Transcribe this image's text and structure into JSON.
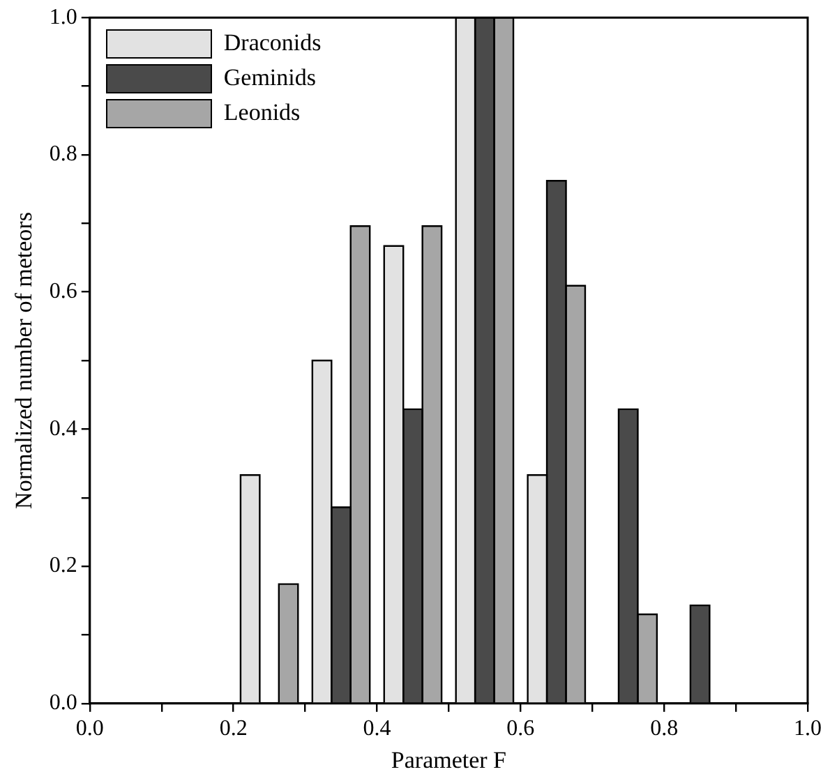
{
  "chart_data": {
    "type": "histogram",
    "xlabel": "Parameter F",
    "ylabel": "Normalized number of meteors",
    "bins": [
      0,
      0.1,
      0.2,
      0.3,
      0.4,
      0.5,
      0.6,
      0.7,
      0.8,
      0.9,
      1.0
    ],
    "series": [
      {
        "name": "Draconids",
        "color": "#e2e2e2",
        "values": [
          0,
          0,
          0.333,
          0.5,
          0.667,
          1,
          0.333,
          0,
          0,
          0
        ]
      },
      {
        "name": "Geminids",
        "color": "#4a4a4a",
        "values": [
          0,
          0,
          0,
          0.286,
          0.429,
          1,
          0.762,
          0.429,
          0.143,
          0
        ]
      },
      {
        "name": "Leonids",
        "color": "#a6a6a6",
        "values": [
          0,
          0,
          0.174,
          0.696,
          0.696,
          1,
          0.609,
          0.13,
          0,
          0
        ]
      }
    ],
    "xlim": [
      0,
      1.0
    ],
    "ylim": [
      0,
      1.0
    ],
    "xticks": [
      {
        "value": 0,
        "label": "0.0"
      },
      {
        "value": 0.1,
        "label": null
      },
      {
        "value": 0.2,
        "label": "0.2"
      },
      {
        "value": 0.3,
        "label": null
      },
      {
        "value": 0.4,
        "label": "0.4"
      },
      {
        "value": 0.5,
        "label": null
      },
      {
        "value": 0.6,
        "label": "0.6"
      },
      {
        "value": 0.7,
        "label": null
      },
      {
        "value": 0.8,
        "label": "0.8"
      },
      {
        "value": 0.9,
        "label": null
      },
      {
        "value": 1.0,
        "label": "1.0"
      }
    ],
    "yticks": [
      {
        "value": 0,
        "label": "0.0"
      },
      {
        "value": 0.1,
        "label": null
      },
      {
        "value": 0.2,
        "label": "0.2"
      },
      {
        "value": 0.3,
        "label": null
      },
      {
        "value": 0.4,
        "label": "0.4"
      },
      {
        "value": 0.5,
        "label": null
      },
      {
        "value": 0.6,
        "label": "0.6"
      },
      {
        "value": 0.7,
        "label": null
      },
      {
        "value": 0.8,
        "label": "0.8"
      },
      {
        "value": 0.9,
        "label": null
      },
      {
        "value": 1.0,
        "label": "1.0"
      }
    ],
    "grid": false,
    "legend": "top left"
  }
}
